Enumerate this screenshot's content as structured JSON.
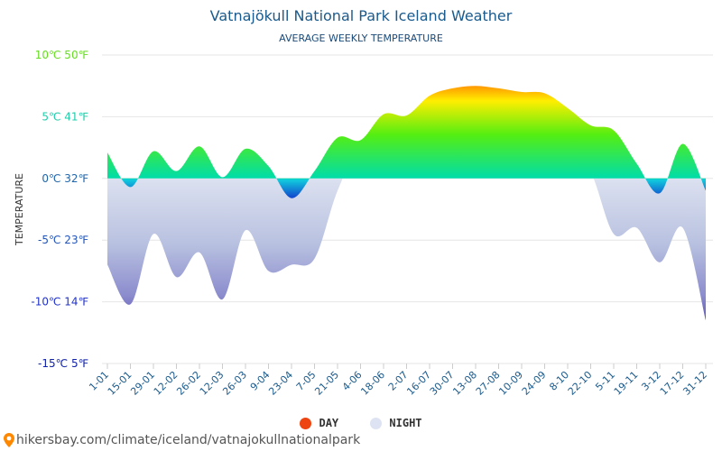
{
  "chart_data": {
    "type": "area",
    "title": "Vatnajökull National Park Iceland Weather",
    "subtitle": "AVERAGE WEEKLY TEMPERATURE",
    "ylabel": "TEMPERATURE",
    "xlabel": "",
    "ylim": [
      -15,
      10
    ],
    "grid": true,
    "legend_placement": "bottom-center",
    "y_ticks": [
      {
        "value": 10,
        "label": "10℃ 50℉",
        "color": "#66dd22"
      },
      {
        "value": 5,
        "label": "5℃ 41℉",
        "color": "#22ccaa"
      },
      {
        "value": 0,
        "label": "0℃ 32℉",
        "color": "#2266aa"
      },
      {
        "value": -5,
        "label": "-5℃ 23℉",
        "color": "#2255bb"
      },
      {
        "value": -10,
        "label": "-10℃ 14℉",
        "color": "#2233cc"
      },
      {
        "value": -15,
        "label": "-15℃ 5℉",
        "color": "#1122aa"
      }
    ],
    "categories": [
      "1-01",
      "15-01",
      "29-01",
      "12-02",
      "26-02",
      "12-03",
      "26-03",
      "9-04",
      "23-04",
      "7-05",
      "21-05",
      "4-06",
      "18-06",
      "2-07",
      "16-07",
      "30-07",
      "13-08",
      "27-08",
      "10-09",
      "24-09",
      "8-10",
      "22-10",
      "5-11",
      "19-11",
      "3-12",
      "17-12",
      "31-12"
    ],
    "series": [
      {
        "name": "DAY",
        "color": "#ee4411",
        "values": [
          2.1,
          -0.7,
          2.2,
          0.6,
          2.6,
          0.1,
          2.4,
          1.0,
          -1.6,
          0.6,
          3.3,
          3.1,
          5.2,
          5.1,
          6.7,
          7.3,
          7.5,
          7.3,
          7.0,
          6.9,
          5.7,
          4.3,
          3.9,
          1.2,
          -1.2,
          2.8,
          -1.0
        ]
      },
      {
        "name": "NIGHT",
        "color": "#dde3f2",
        "values": [
          -7.0,
          -10.2,
          -4.5,
          -8.0,
          -6.0,
          -9.8,
          -4.2,
          -7.5,
          -7.0,
          -6.5,
          -1.0,
          2.4,
          1.0,
          3.6,
          4.5,
          3.5,
          3.8,
          4.0,
          3.5,
          5.0,
          2.0,
          0.5,
          -4.5,
          -4.0,
          -6.8,
          -4.0,
          -11.5
        ]
      }
    ]
  },
  "legend": {
    "day_label": "DAY",
    "night_label": "NIGHT",
    "day_color": "#ee4411",
    "night_color": "#dde3f2"
  },
  "footer": {
    "url_text": "hikersbay.com/climate/iceland/vatnajokullnationalpark"
  }
}
